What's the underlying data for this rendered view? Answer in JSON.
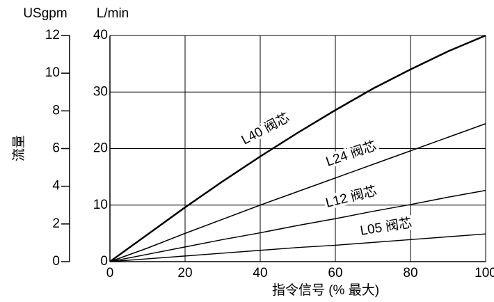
{
  "chart_data": {
    "type": "line",
    "y_label_left": "USgpm",
    "y_label_right": "L/min",
    "y_axis_title": "流量",
    "x_axis_title": "指令信号 (% 最大)",
    "x": [
      0,
      10,
      20,
      30,
      40,
      50,
      60,
      70,
      80,
      90,
      100
    ],
    "series": [
      {
        "name": "L40 阀芯",
        "color": "#000",
        "values": [
          0,
          4.8,
          9.6,
          14.2,
          18.6,
          22.8,
          26.8,
          30.6,
          34.0,
          37.2,
          40
        ]
      },
      {
        "name": "L24 阀芯",
        "color": "#000",
        "values": [
          0,
          2.4,
          5,
          7.5,
          10,
          12.4,
          14.8,
          17.2,
          19.6,
          22,
          24.4
        ]
      },
      {
        "name": "L12 阀芯",
        "color": "#000",
        "values": [
          0,
          1.3,
          2.6,
          3.9,
          5.1,
          6.4,
          7.6,
          8.9,
          10.1,
          11.4,
          12.6
        ]
      },
      {
        "name": "L05 阀芯",
        "color": "#000",
        "values": [
          0,
          0.5,
          1,
          1.5,
          2,
          2.5,
          2.9,
          3.4,
          3.9,
          4.4,
          4.9
        ]
      }
    ],
    "xlim": [
      0,
      100
    ],
    "xticks": [
      0,
      20,
      40,
      60,
      80,
      100
    ],
    "ylim": [
      0,
      40
    ],
    "yticks": [
      0,
      10,
      20,
      30,
      40
    ],
    "y2lim": [
      0,
      12
    ],
    "y2ticks": [
      0,
      2,
      4,
      6,
      8,
      10,
      12
    ],
    "grid": true
  }
}
